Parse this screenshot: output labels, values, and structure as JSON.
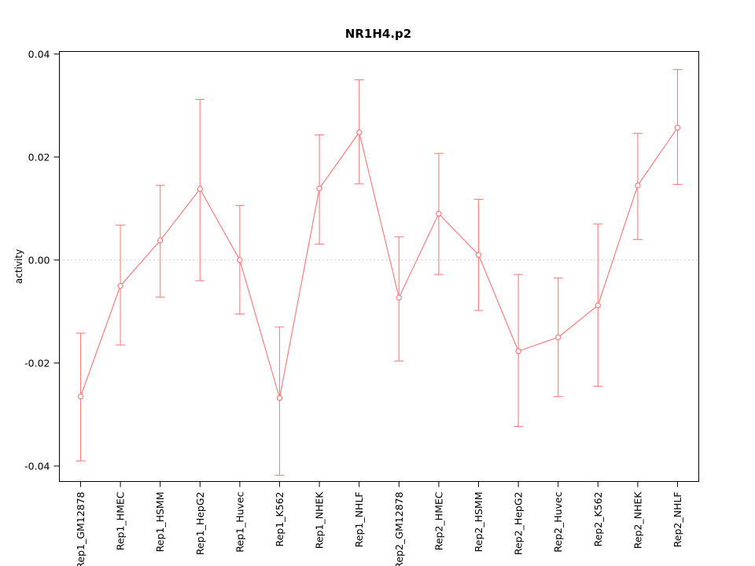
{
  "chart_data": {
    "type": "line",
    "title": "NR1H4.p2",
    "xlabel": "",
    "ylabel": "activity",
    "ylim": [
      -0.043,
      0.0405
    ],
    "yticks": [
      {
        "value": -0.04,
        "label": "-0.04"
      },
      {
        "value": -0.02,
        "label": "-0.02"
      },
      {
        "value": 0.0,
        "label": "0.00"
      },
      {
        "value": 0.02,
        "label": "0.02"
      },
      {
        "value": 0.04,
        "label": "0.04"
      }
    ],
    "grid": {
      "zero_line": true,
      "style": "dotted",
      "color": "#c0c0c0"
    },
    "legend": "none",
    "marker": "open-circle",
    "color": "#ff7d7d",
    "box_color": "#000000",
    "categories": [
      "Rep1_GM12878",
      "Rep1_HMEC",
      "Rep1_HSMM",
      "Rep1_HepG2",
      "Rep1_Huvec",
      "Rep1_K562",
      "Rep1_NHEK",
      "Rep1_NHLF",
      "Rep2_GM12878",
      "Rep2_HMEC",
      "Rep2_HSMM",
      "Rep2_HepG2",
      "Rep2_Huvec",
      "Rep2_K562",
      "Rep2_NHEK",
      "Rep2_NHLF"
    ],
    "series": [
      {
        "name": "activity",
        "values": [
          -0.0265,
          -0.005,
          0.0038,
          0.0138,
          0.0,
          -0.0268,
          0.0139,
          0.0248,
          -0.0073,
          0.009,
          0.001,
          -0.0177,
          -0.015,
          -0.0088,
          0.0145,
          0.0257
        ],
        "error_low": [
          -0.039,
          -0.0165,
          -0.0072,
          -0.004,
          -0.0105,
          -0.0418,
          0.0031,
          0.0148,
          -0.0196,
          -0.0028,
          -0.0098,
          -0.0323,
          -0.0265,
          -0.0245,
          0.004,
          0.0147
        ],
        "error_high": [
          -0.0142,
          0.0068,
          0.0145,
          0.0312,
          0.0106,
          -0.013,
          0.0243,
          0.035,
          0.0045,
          0.0207,
          0.0118,
          -0.0028,
          -0.0035,
          0.007,
          0.0246,
          0.037
        ]
      }
    ]
  }
}
